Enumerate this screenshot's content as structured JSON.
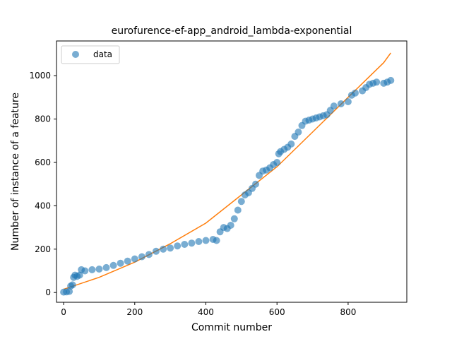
{
  "chart_data": {
    "type": "scatter",
    "title": "eurofurence-ef-app_android_lambda-exponential",
    "xlabel": "Commit number",
    "ylabel": "Number of instance of a feature",
    "xlim": [
      -20,
      965
    ],
    "ylim": [
      -45,
      1160
    ],
    "x_ticks": [
      0,
      200,
      400,
      600,
      800
    ],
    "y_ticks": [
      0,
      200,
      400,
      600,
      800,
      1000
    ],
    "grid": false,
    "legend": {
      "placement": "top-left",
      "entries": [
        "data"
      ]
    },
    "colors": {
      "data": "#1f77b4",
      "fit": "#ff7f0e"
    },
    "series": [
      {
        "name": "data",
        "marker": "circle",
        "points": [
          [
            0,
            2
          ],
          [
            8,
            3
          ],
          [
            16,
            5
          ],
          [
            20,
            30
          ],
          [
            25,
            35
          ],
          [
            28,
            70
          ],
          [
            32,
            80
          ],
          [
            38,
            75
          ],
          [
            45,
            80
          ],
          [
            50,
            105
          ],
          [
            60,
            100
          ],
          [
            80,
            105
          ],
          [
            100,
            108
          ],
          [
            120,
            115
          ],
          [
            140,
            125
          ],
          [
            160,
            135
          ],
          [
            180,
            145
          ],
          [
            200,
            155
          ],
          [
            220,
            165
          ],
          [
            240,
            175
          ],
          [
            260,
            190
          ],
          [
            280,
            200
          ],
          [
            300,
            205
          ],
          [
            320,
            215
          ],
          [
            340,
            222
          ],
          [
            360,
            228
          ],
          [
            380,
            235
          ],
          [
            400,
            240
          ],
          [
            420,
            245
          ],
          [
            430,
            240
          ],
          [
            440,
            280
          ],
          [
            450,
            300
          ],
          [
            460,
            295
          ],
          [
            470,
            310
          ],
          [
            480,
            340
          ],
          [
            490,
            380
          ],
          [
            500,
            420
          ],
          [
            510,
            450
          ],
          [
            520,
            460
          ],
          [
            530,
            480
          ],
          [
            540,
            500
          ],
          [
            550,
            540
          ],
          [
            560,
            560
          ],
          [
            570,
            565
          ],
          [
            580,
            575
          ],
          [
            590,
            590
          ],
          [
            600,
            600
          ],
          [
            605,
            640
          ],
          [
            610,
            650
          ],
          [
            620,
            660
          ],
          [
            630,
            670
          ],
          [
            640,
            685
          ],
          [
            650,
            720
          ],
          [
            660,
            740
          ],
          [
            670,
            770
          ],
          [
            680,
            790
          ],
          [
            690,
            795
          ],
          [
            700,
            800
          ],
          [
            710,
            805
          ],
          [
            720,
            810
          ],
          [
            730,
            815
          ],
          [
            740,
            820
          ],
          [
            750,
            840
          ],
          [
            760,
            860
          ],
          [
            780,
            870
          ],
          [
            800,
            880
          ],
          [
            810,
            910
          ],
          [
            820,
            920
          ],
          [
            840,
            930
          ],
          [
            850,
            945
          ],
          [
            860,
            960
          ],
          [
            870,
            965
          ],
          [
            880,
            970
          ],
          [
            900,
            965
          ],
          [
            910,
            970
          ],
          [
            920,
            978
          ]
        ]
      },
      {
        "name": "",
        "style": "line",
        "points": [
          [
            0,
            15
          ],
          [
            100,
            70
          ],
          [
            200,
            140
          ],
          [
            300,
            225
          ],
          [
            400,
            320
          ],
          [
            500,
            450
          ],
          [
            600,
            580
          ],
          [
            700,
            740
          ],
          [
            800,
            900
          ],
          [
            900,
            1060
          ],
          [
            920,
            1105
          ]
        ]
      }
    ]
  }
}
